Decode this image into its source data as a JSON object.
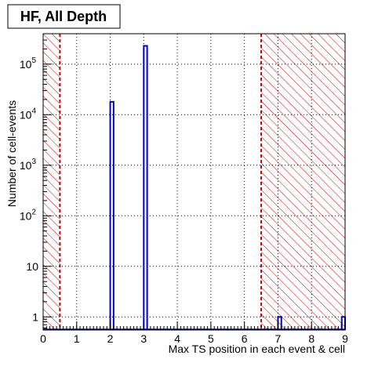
{
  "chart_data": {
    "type": "bar",
    "title": "HF, All Depth",
    "xlabel": "Max TS position in each event & cell",
    "ylabel": "Number of cell-events",
    "xlim": [
      0,
      9
    ],
    "ylim": [
      0.55,
      400000
    ],
    "y_scale": "log",
    "grid": true,
    "x_ticks": [
      "0",
      "1",
      "2",
      "3",
      "4",
      "5",
      "6",
      "7",
      "8",
      "9"
    ],
    "y_ticks": [
      {
        "value": 1,
        "label": "1"
      },
      {
        "value": 10,
        "label": "10"
      },
      {
        "value": 100,
        "base": "10",
        "exp": "2"
      },
      {
        "value": 1000,
        "base": "10",
        "exp": "3"
      },
      {
        "value": 10000,
        "base": "10",
        "exp": "4"
      },
      {
        "value": 100000,
        "base": "10",
        "exp": "5"
      }
    ],
    "bins": [
      {
        "x0": 2.0,
        "x1": 2.1,
        "value": 18000
      },
      {
        "x0": 3.0,
        "x1": 3.1,
        "value": 230000
      },
      {
        "x0": 7.0,
        "x1": 7.1,
        "value": 1
      },
      {
        "x0": 8.9,
        "x1": 9.0,
        "value": 1
      }
    ],
    "excluded_ranges": [
      [
        0,
        0.5
      ],
      [
        6.5,
        9
      ]
    ],
    "cut_lines": [
      0.5,
      6.5
    ],
    "colors": {
      "histogram": "#0000cc",
      "hatch": "#cc0000",
      "cut_line": "#cc0000",
      "grid": "#000000"
    }
  }
}
